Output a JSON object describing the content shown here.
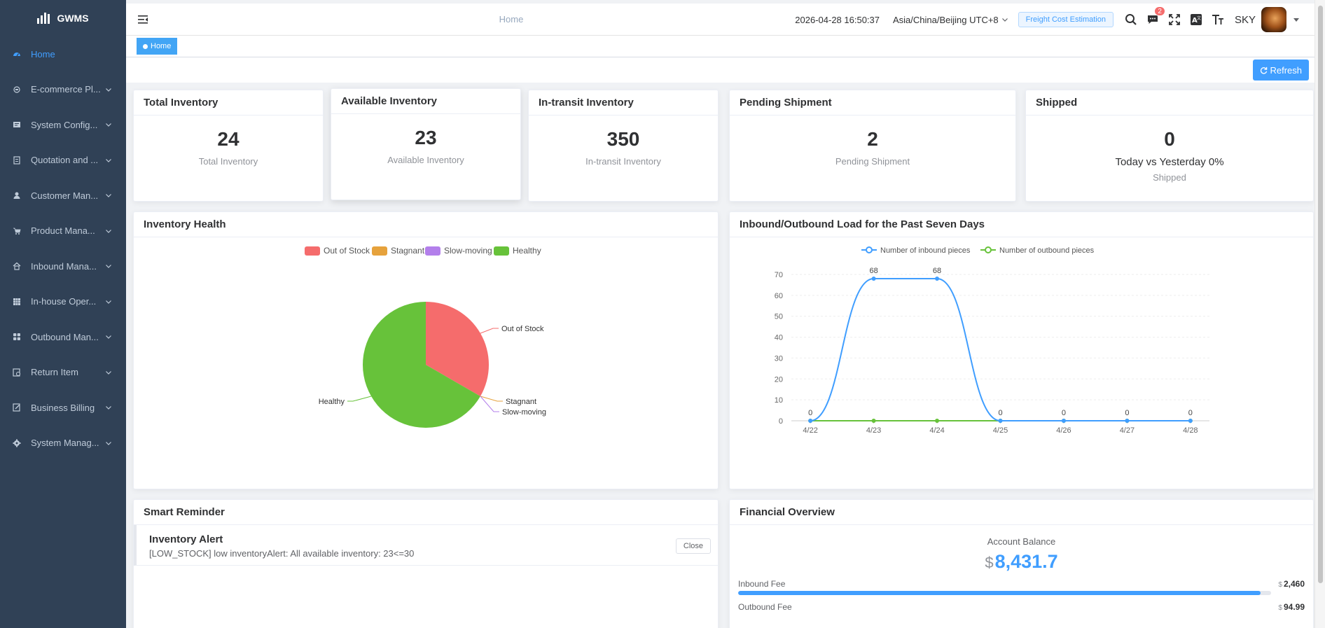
{
  "app": {
    "name": "GWMS"
  },
  "sidebar": {
    "items": [
      {
        "label": "Home",
        "icon": "dashboard-icon"
      },
      {
        "label": "E-commerce Pl...",
        "icon": "shop-icon"
      },
      {
        "label": "System Config...",
        "icon": "config-icon"
      },
      {
        "label": "Quotation and ...",
        "icon": "quotation-icon"
      },
      {
        "label": "Customer Man...",
        "icon": "user-icon"
      },
      {
        "label": "Product Mana...",
        "icon": "cart-icon"
      },
      {
        "label": "Inbound Mana...",
        "icon": "home-icon"
      },
      {
        "label": "In-house Oper...",
        "icon": "grid-icon"
      },
      {
        "label": "Outbound Man...",
        "icon": "apps-icon"
      },
      {
        "label": "Return Item",
        "icon": "return-icon"
      },
      {
        "label": "Business Billing",
        "icon": "edit-icon"
      },
      {
        "label": "System Manag...",
        "icon": "gear-icon"
      }
    ]
  },
  "header": {
    "breadcrumb": "Home",
    "datetime": "2026-04-28 16:50:37",
    "timezone": "Asia/China/Beijing UTC+8",
    "freight_button": "Freight Cost Estimation",
    "notification_count": "2",
    "username": "SKY"
  },
  "tags": {
    "home": "Home"
  },
  "toolbar": {
    "refresh": "Refresh"
  },
  "stats": [
    {
      "title": "Total Inventory",
      "value": "24",
      "label": "Total Inventory"
    },
    {
      "title": "Available Inventory",
      "value": "23",
      "label": "Available Inventory"
    },
    {
      "title": "In-transit Inventory",
      "value": "350",
      "label": "In-transit Inventory"
    },
    {
      "title": "Pending Shipment",
      "value": "2",
      "label": "Pending Shipment"
    },
    {
      "title": "Shipped",
      "value": "0",
      "sub": "Today vs Yesterday 0%",
      "label": "Shipped"
    }
  ],
  "inventory_health": {
    "title": "Inventory Health",
    "legend": [
      {
        "name": "Out of Stock",
        "color": "#f56c6c"
      },
      {
        "name": "Stagnant",
        "color": "#e6a23c"
      },
      {
        "name": "Slow-moving",
        "color": "#b37feb"
      },
      {
        "name": "Healthy",
        "color": "#67c23a"
      }
    ]
  },
  "load_chart": {
    "title": "Inbound/Outbound Load for the Past Seven Days"
  },
  "chart_data": [
    {
      "type": "pie",
      "title": "Inventory Health",
      "categories": [
        "Out of Stock",
        "Stagnant",
        "Slow-moving",
        "Healthy"
      ],
      "values": [
        1,
        0,
        0,
        2
      ],
      "colors": [
        "#f56c6c",
        "#e6a23c",
        "#b37feb",
        "#67c23a"
      ]
    },
    {
      "type": "line",
      "title": "Inbound/Outbound Load for the Past Seven Days",
      "categories": [
        "4/22",
        "4/23",
        "4/24",
        "4/25",
        "4/26",
        "4/27",
        "4/28"
      ],
      "series": [
        {
          "name": "Number of inbound pieces",
          "values": [
            0,
            68,
            68,
            0,
            0,
            0,
            0
          ],
          "color": "#409eff"
        },
        {
          "name": "Number of outbound pieces",
          "values": [
            0,
            0,
            0,
            0,
            0,
            0,
            0
          ],
          "color": "#67c23a"
        }
      ],
      "ylim": [
        0,
        70
      ],
      "yticks": [
        0,
        10,
        20,
        30,
        40,
        50,
        60,
        70
      ],
      "grid": true,
      "legend": "top-center"
    }
  ],
  "reminder": {
    "title": "Smart Reminder",
    "alert_title": "Inventory Alert",
    "alert_text": "[LOW_STOCK] low inventoryAlert: All available inventory: 23<=30",
    "close": "Close"
  },
  "finance": {
    "title": "Financial Overview",
    "balance_label": "Account Balance",
    "currency": "$",
    "balance": "8,431.7",
    "fees": [
      {
        "label": "Inbound Fee",
        "currency": "$",
        "value": "2,460",
        "progress": 0.98
      },
      {
        "label": "Outbound Fee",
        "currency": "$",
        "value": "94.99",
        "progress": 0.04
      }
    ]
  }
}
